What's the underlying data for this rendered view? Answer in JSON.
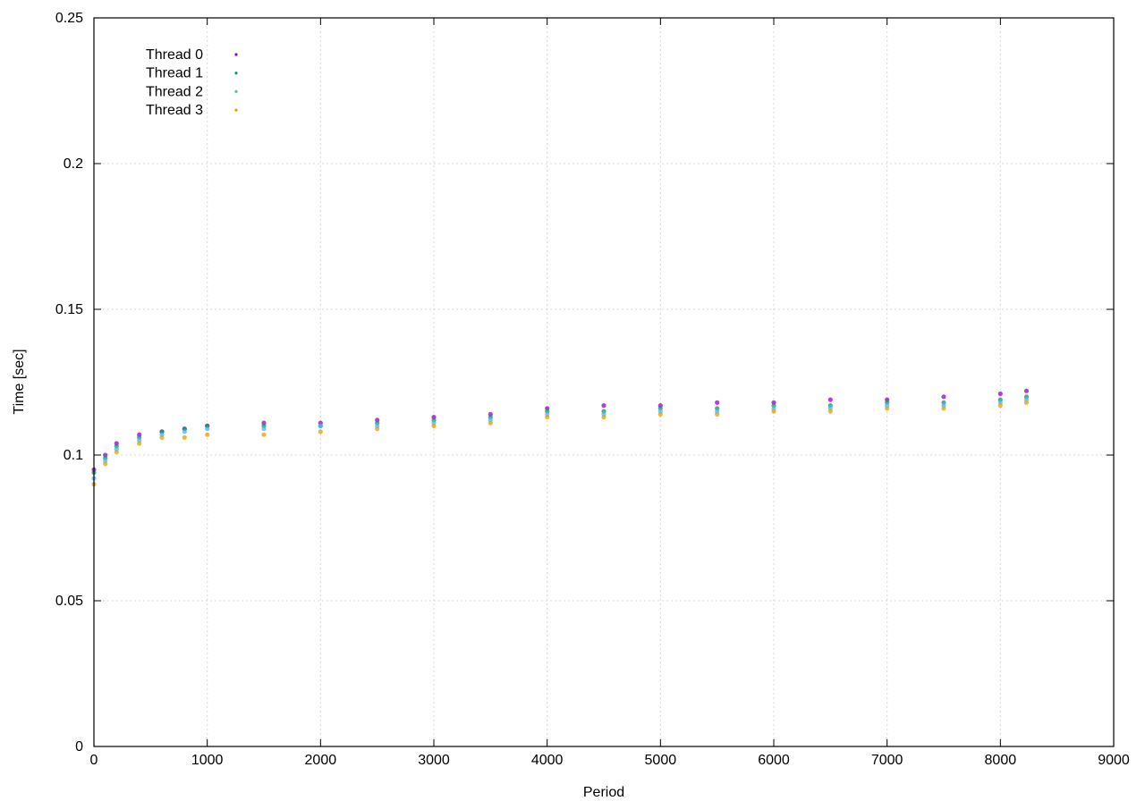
{
  "chart_data": {
    "type": "scatter",
    "title": "",
    "xlabel": "Period",
    "ylabel": "Time [sec]",
    "xlim": [
      0,
      9000
    ],
    "ylim": [
      0,
      0.25
    ],
    "x_ticks": [
      "0",
      "1000",
      "2000",
      "3000",
      "4000",
      "5000",
      "6000",
      "7000",
      "8000",
      "9000"
    ],
    "y_ticks": [
      "0",
      "0.05",
      "0.1",
      "0.15",
      "0.2",
      "0.25"
    ],
    "x_tick_values": [
      0,
      1000,
      2000,
      3000,
      4000,
      5000,
      6000,
      7000,
      8000,
      9000
    ],
    "y_tick_values": [
      0,
      0.05,
      0.1,
      0.15,
      0.2,
      0.25
    ],
    "grid": true,
    "legend_position": "top-left",
    "series": [
      {
        "name": "Thread 0",
        "color": "#9400d3",
        "x": [
          0,
          100,
          200,
          400,
          600,
          800,
          1000,
          1500,
          2000,
          2500,
          3000,
          3500,
          4000,
          4500,
          5000,
          5500,
          6000,
          6500,
          7000,
          7500,
          8000,
          8230
        ],
        "y": [
          0.095,
          0.1,
          0.104,
          0.107,
          0.108,
          0.109,
          0.11,
          0.111,
          0.111,
          0.112,
          0.113,
          0.114,
          0.116,
          0.117,
          0.117,
          0.118,
          0.118,
          0.119,
          0.119,
          0.12,
          0.121,
          0.122
        ]
      },
      {
        "name": "Thread 1",
        "color": "#009e73",
        "x": [
          0,
          100,
          200,
          400,
          600,
          800,
          1000,
          1500,
          2000,
          2500,
          3000,
          3500,
          4000,
          4500,
          5000,
          5500,
          6000,
          6500,
          7000,
          7500,
          8000,
          8230
        ],
        "y": [
          0.094,
          0.099,
          0.103,
          0.106,
          0.108,
          0.109,
          0.11,
          0.11,
          0.11,
          0.111,
          0.112,
          0.113,
          0.115,
          0.115,
          0.116,
          0.116,
          0.117,
          0.117,
          0.118,
          0.118,
          0.119,
          0.12
        ]
      },
      {
        "name": "Thread 2",
        "color": "#56b4e9",
        "x": [
          0,
          100,
          200,
          400,
          600,
          800,
          1000,
          1500,
          2000,
          2500,
          3000,
          3500,
          4000,
          4500,
          5000,
          5500,
          6000,
          6500,
          7000,
          7500,
          8000,
          8230
        ],
        "y": [
          0.092,
          0.098,
          0.102,
          0.105,
          0.107,
          0.108,
          0.109,
          0.109,
          0.11,
          0.11,
          0.111,
          0.112,
          0.114,
          0.114,
          0.115,
          0.115,
          0.116,
          0.116,
          0.117,
          0.117,
          0.118,
          0.119
        ]
      },
      {
        "name": "Thread 3",
        "color": "#e69f00",
        "x": [
          0,
          100,
          200,
          400,
          600,
          800,
          1000,
          1500,
          2000,
          2500,
          3000,
          3500,
          4000,
          4500,
          5000,
          5500,
          6000,
          6500,
          7000,
          7500,
          8000,
          8230
        ],
        "y": [
          0.09,
          0.097,
          0.101,
          0.104,
          0.106,
          0.106,
          0.107,
          0.107,
          0.108,
          0.109,
          0.11,
          0.111,
          0.113,
          0.113,
          0.114,
          0.114,
          0.115,
          0.115,
          0.116,
          0.116,
          0.117,
          0.118
        ]
      }
    ]
  }
}
